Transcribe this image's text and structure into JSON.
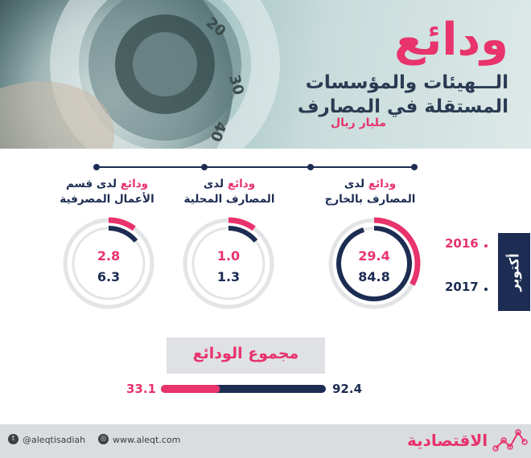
{
  "header": {
    "title": "ودائع",
    "subtitle": "الـــهيئات والمؤسسات المستقلة في المصارف",
    "unit": "مليار ريال"
  },
  "legend": {
    "month": "أكتوبر",
    "years": [
      {
        "label": "2016",
        "color": "#e8336c"
      },
      {
        "label": "2017",
        "color": "#1c2c52"
      }
    ]
  },
  "chart_data": [
    {
      "type": "gauge",
      "categories": [
        {
          "highlight": "ودائع",
          "rest": "لدى",
          "line2": "المصارف بالخارج"
        },
        {
          "highlight": "ودائع",
          "rest": "لدى",
          "line2": "المصارف المحلية"
        },
        {
          "highlight": "ودائع",
          "rest": "لدى قسم",
          "line2": "الأعمال المصرفية"
        }
      ],
      "series": [
        {
          "name": "2016",
          "values": [
            29.4,
            1.0,
            2.8
          ],
          "labels": [
            "29.4",
            "1.0",
            "2.8"
          ],
          "color": "#e8336c"
        },
        {
          "name": "2017",
          "values": [
            84.8,
            1.3,
            6.3
          ],
          "labels": [
            "84.8",
            "1.3",
            "6.3"
          ],
          "color": "#1c2c52"
        }
      ]
    },
    {
      "type": "bar",
      "title": "مجموع الودائع",
      "series": [
        {
          "name": "2016",
          "values": [
            33.1
          ],
          "labels": [
            "33.1"
          ],
          "color": "#e8336c"
        },
        {
          "name": "2017",
          "values": [
            92.4
          ],
          "labels": [
            "92.4"
          ],
          "color": "#1c2c52"
        }
      ]
    }
  ],
  "footer": {
    "twitter": "@aleqtisadiah",
    "website": "www.aleqt.com",
    "brand": "الاقتصادية",
    "twitter_icon": "twitter-icon",
    "web_icon": "globe-icon"
  }
}
